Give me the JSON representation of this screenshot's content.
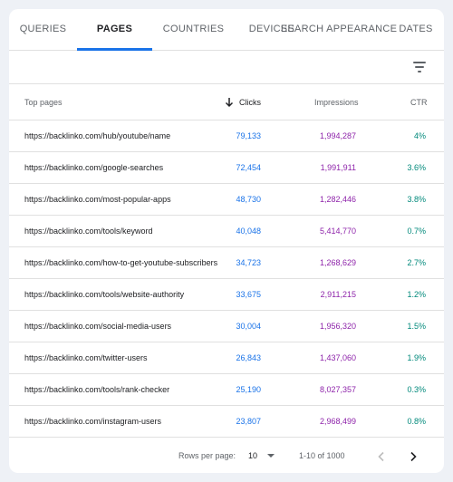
{
  "tabs": [
    {
      "label": "QUERIES",
      "active": false
    },
    {
      "label": "PAGES",
      "active": true
    },
    {
      "label": "COUNTRIES",
      "active": false
    },
    {
      "label": "DEVICES",
      "active": false
    },
    {
      "label": "SEARCH APPEARANCE",
      "active": false
    },
    {
      "label": "DATES",
      "active": false
    }
  ],
  "table": {
    "headers": {
      "page": "Top pages",
      "clicks": "Clicks",
      "impressions": "Impressions",
      "ctr": "CTR"
    },
    "sort": {
      "column": "clicks",
      "direction": "descending"
    },
    "rows": [
      {
        "url": "https://backlinko.com/hub/youtube/name",
        "clicks": "79,133",
        "impressions": "1,994,287",
        "ctr": "4%"
      },
      {
        "url": "https://backlinko.com/google-searches",
        "clicks": "72,454",
        "impressions": "1,991,911",
        "ctr": "3.6%"
      },
      {
        "url": "https://backlinko.com/most-popular-apps",
        "clicks": "48,730",
        "impressions": "1,282,446",
        "ctr": "3.8%"
      },
      {
        "url": "https://backlinko.com/tools/keyword",
        "clicks": "40,048",
        "impressions": "5,414,770",
        "ctr": "0.7%"
      },
      {
        "url": "https://backlinko.com/how-to-get-youtube-subscribers",
        "clicks": "34,723",
        "impressions": "1,268,629",
        "ctr": "2.7%"
      },
      {
        "url": "https://backlinko.com/tools/website-authority",
        "clicks": "33,675",
        "impressions": "2,911,215",
        "ctr": "1.2%"
      },
      {
        "url": "https://backlinko.com/social-media-users",
        "clicks": "30,004",
        "impressions": "1,956,320",
        "ctr": "1.5%"
      },
      {
        "url": "https://backlinko.com/twitter-users",
        "clicks": "26,843",
        "impressions": "1,437,060",
        "ctr": "1.9%"
      },
      {
        "url": "https://backlinko.com/tools/rank-checker",
        "clicks": "25,190",
        "impressions": "8,027,357",
        "ctr": "0.3%"
      },
      {
        "url": "https://backlinko.com/instagram-users",
        "clicks": "23,807",
        "impressions": "2,968,499",
        "ctr": "0.8%"
      }
    ]
  },
  "pagination": {
    "rows_per_page_label": "Rows per page:",
    "rows_per_page_value": "10",
    "range": "1-10 of 1000"
  },
  "icons": {
    "filter": "filter-icon",
    "sort": "arrow-down-icon",
    "dropdown": "caret-down-icon",
    "prev": "chevron-left-icon",
    "next": "chevron-right-icon"
  },
  "colors": {
    "accent": "#1a73e8",
    "clicks": "#1a73e8",
    "impressions": "#8e24aa",
    "ctr": "#00897b",
    "background": "#eef1f6"
  }
}
